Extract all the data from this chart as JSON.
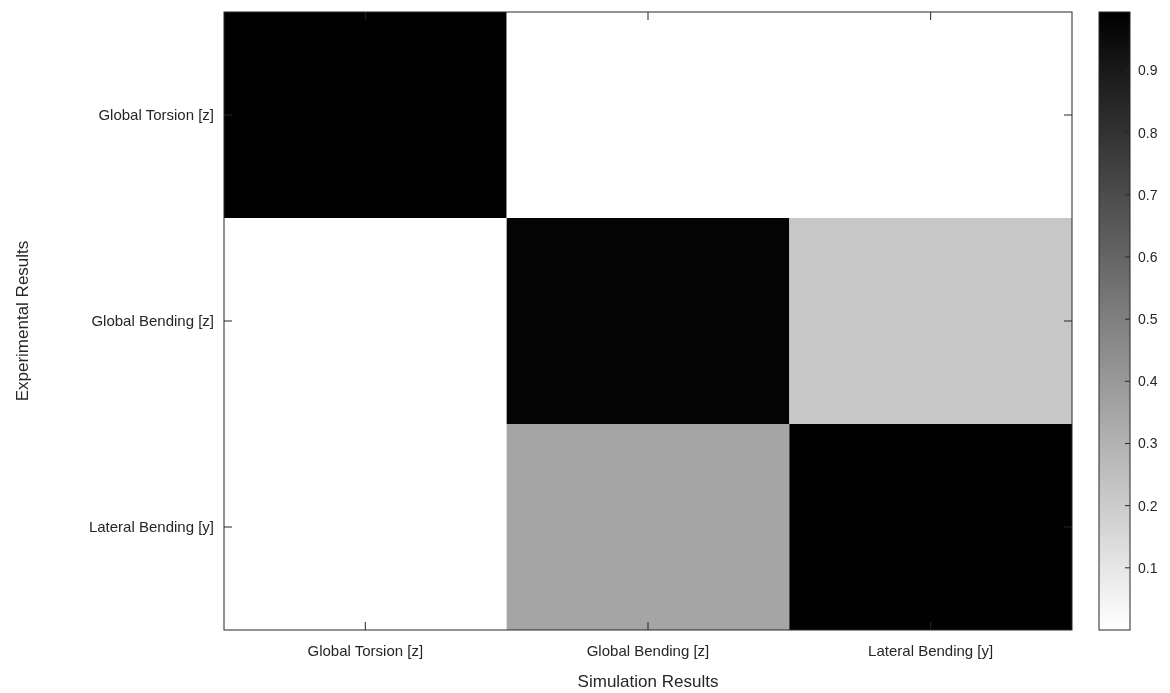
{
  "chart_data": {
    "type": "heatmap",
    "xlabel": "Simulation Results",
    "ylabel": "Experimental Results",
    "categories": [
      "Global Torsion [z]",
      "Global Bending [z]",
      "Lateral Bending [y]"
    ],
    "y_categories": [
      "Global Torsion [z]",
      "Global Bending [z]",
      "Lateral Bending [y]"
    ],
    "cells": [
      [
        0.99,
        0.002,
        0.002
      ],
      [
        0.002,
        0.98,
        0.22
      ],
      [
        0.002,
        0.35,
        0.99
      ]
    ],
    "clim": [
      0,
      0.994
    ],
    "cticks": [
      0.1,
      0.2,
      0.3,
      0.4,
      0.5,
      0.6,
      0.7,
      0.8,
      0.9
    ]
  }
}
